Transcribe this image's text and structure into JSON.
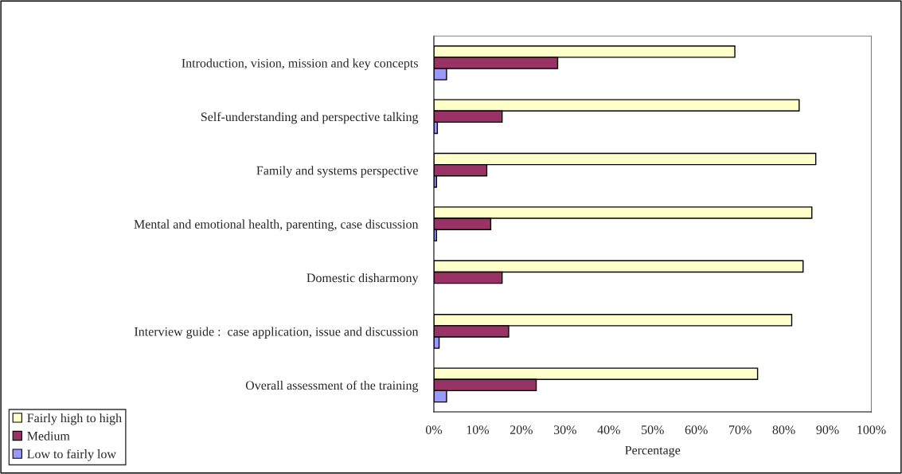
{
  "chart_data": {
    "type": "bar",
    "orientation": "horizontal",
    "xlabel": "Percentage",
    "categories": [
      "Introduction, vision, mission and key concepts",
      "Self-understanding and perspective talking",
      "Family and systems perspective",
      "Mental and emotional health, parenting, case discussion",
      "Domestic disharmony",
      "Interview guide :  case application, issue and discussion",
      "Overall assessment of the training"
    ],
    "series": [
      {
        "name": "Fairly high to high",
        "color": "#ffffcc",
        "values": [
          68.8,
          83.5,
          87.3,
          86.4,
          84.4,
          81.8,
          74.0
        ]
      },
      {
        "name": "Medium",
        "color": "#993366",
        "values": [
          28.3,
          15.6,
          12.1,
          13.0,
          15.6,
          17.1,
          23.4
        ]
      },
      {
        "name": "Low to fairly low",
        "color": "#9999ff",
        "values": [
          2.9,
          0.8,
          0.6,
          0.6,
          null,
          1.2,
          2.9
        ]
      }
    ],
    "xlim": [
      0,
      100
    ],
    "xticks": [
      {
        "value": 0,
        "label": "0%"
      },
      {
        "value": 10,
        "label": "10%"
      },
      {
        "value": 20,
        "label": "20%"
      },
      {
        "value": 30,
        "label": "30%"
      },
      {
        "value": 40,
        "label": "40%"
      },
      {
        "value": 50,
        "label": "50%"
      },
      {
        "value": 60,
        "label": "60%"
      },
      {
        "value": 70,
        "label": "70%"
      },
      {
        "value": 80,
        "label": "80%"
      },
      {
        "value": 90,
        "label": "90%"
      },
      {
        "value": 100,
        "label": "100%"
      }
    ],
    "grid": false,
    "legend": "bottom left"
  }
}
